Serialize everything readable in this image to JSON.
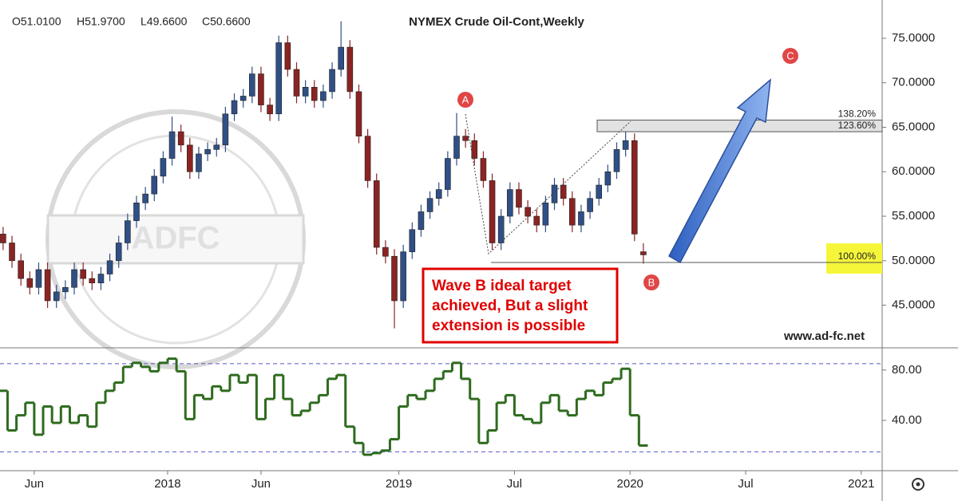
{
  "chart_data": [
    {
      "type": "candlestick",
      "title": "NYMEX Crude Oil-Cont,Weekly",
      "ohlc_legend": [
        "O51.0100",
        "H51.9700",
        "L49.6600",
        "C50.6600"
      ],
      "xlim": [
        -37.7,
        160.7
      ],
      "ylim": [
        40.3,
        79.3
      ],
      "yticks": [
        {
          "value": 45,
          "label": "45.0000"
        },
        {
          "value": 50,
          "label": "50.0000"
        },
        {
          "value": 55,
          "label": "55.0000"
        },
        {
          "value": 60,
          "label": "60.0000"
        },
        {
          "value": 65,
          "label": "65.0000"
        },
        {
          "value": 70,
          "label": "70.0000"
        },
        {
          "value": 75,
          "label": "75.0000"
        }
      ],
      "up_color": "#2f4f86",
      "down_color": "#8b2323",
      "x": [
        -37,
        -35,
        -33,
        -31,
        -29,
        -27,
        -25,
        -23,
        -21,
        -19,
        -17,
        -15,
        -13,
        -11,
        -9,
        -7,
        -5,
        -3,
        -1,
        1,
        3,
        5,
        7,
        9,
        11,
        13,
        15,
        17,
        19,
        21,
        23,
        25,
        27,
        29,
        31,
        33,
        35,
        37,
        39,
        41,
        43,
        45,
        47,
        49,
        51,
        53,
        55,
        57,
        59,
        61,
        63,
        65,
        67,
        69,
        71,
        73,
        75,
        77,
        79,
        81,
        83,
        85,
        87,
        89,
        91,
        93,
        95,
        97,
        99,
        101,
        103,
        105,
        107
      ],
      "open": [
        53,
        52,
        50,
        48,
        47,
        49,
        45.5,
        46.5,
        47,
        49,
        48,
        47.5,
        48.5,
        50,
        52,
        54.5,
        56.5,
        57.5,
        59.5,
        61.5,
        64.5,
        63,
        60,
        62,
        62.5,
        63,
        66.5,
        68,
        68.5,
        71,
        67.5,
        66.5,
        74.5,
        71.5,
        68.5,
        69.5,
        68,
        69,
        71.5,
        74,
        69,
        64,
        59,
        51.5,
        50.5,
        45.5,
        51,
        53.5,
        55.5,
        57,
        58,
        61.5,
        64,
        63.5,
        61.5,
        59,
        52,
        55,
        58,
        56,
        55,
        54,
        56.5,
        58.5,
        57,
        54,
        55.5,
        57,
        58.5,
        60,
        62.5,
        63.5,
        51.01
      ],
      "high": [
        53.8,
        52.8,
        50.8,
        48.8,
        49.8,
        49.8,
        47.3,
        47.8,
        49.8,
        49.8,
        48.8,
        49.3,
        50.8,
        52.8,
        55.3,
        57.3,
        58.3,
        60.3,
        62.3,
        66.2,
        65.3,
        63.8,
        62.8,
        63.3,
        63.8,
        67.3,
        68.8,
        69.3,
        71.8,
        71.8,
        68.3,
        75.3,
        75.3,
        72.3,
        70.3,
        70.3,
        69.8,
        72.3,
        76.9,
        74.8,
        69.8,
        64.8,
        59.8,
        52.3,
        51.3,
        51.8,
        54.3,
        56.3,
        57.8,
        58.8,
        62.3,
        66.6,
        64.8,
        64.3,
        62.3,
        59.8,
        55.8,
        58.8,
        58.8,
        56.8,
        55.8,
        57.3,
        59.3,
        59.3,
        57.8,
        56.3,
        57.8,
        59.3,
        60.8,
        63.3,
        65.6,
        64.3,
        51.97
      ],
      "low": [
        51.2,
        49.2,
        47.2,
        46.2,
        46.2,
        44.7,
        44.7,
        45.7,
        46.2,
        47.2,
        46.7,
        46.7,
        47.7,
        49.2,
        51.2,
        53.7,
        55.7,
        56.7,
        58.7,
        60.7,
        62.2,
        59.2,
        59.2,
        61.2,
        61.7,
        62.2,
        65.7,
        67.2,
        67.7,
        66.7,
        65.7,
        65.7,
        70.7,
        67.7,
        67.7,
        67.2,
        67.2,
        68.2,
        70.7,
        68.2,
        63.2,
        58.2,
        50.7,
        49.7,
        42.4,
        44.7,
        50.2,
        52.7,
        54.7,
        56.2,
        57.2,
        60.7,
        62.7,
        60.7,
        58.2,
        51.2,
        51.2,
        54.2,
        55.2,
        54.2,
        53.2,
        53.2,
        55.7,
        56.2,
        53.2,
        53.2,
        54.7,
        56.2,
        57.7,
        59.2,
        61.7,
        52.2,
        49.66
      ],
      "close": [
        52,
        50,
        48,
        47,
        49,
        45.5,
        46.5,
        47,
        49,
        48,
        47.5,
        48.5,
        50,
        52,
        54.5,
        56.5,
        57.5,
        59.5,
        61.5,
        64.5,
        63,
        60,
        62,
        62.5,
        63,
        66.5,
        68,
        68.5,
        71,
        67.5,
        66.5,
        74.5,
        71.5,
        68.5,
        69.5,
        68,
        69,
        71.5,
        74,
        69,
        64,
        59,
        51.5,
        50.5,
        45.5,
        51,
        53.5,
        55.5,
        57,
        58,
        61.5,
        64,
        63.5,
        61.5,
        59,
        52,
        55,
        58,
        56,
        55,
        54,
        56.5,
        58.5,
        57,
        54,
        55.5,
        57,
        58.5,
        60,
        62.5,
        63.5,
        53,
        50.66
      ],
      "fib_levels": [
        {
          "label": "138.20%",
          "value": 65.8
        },
        {
          "label": "123.60%",
          "value": 64.5
        },
        {
          "label": "100.00%",
          "value": 49.8
        }
      ],
      "wave_labels": [
        "A",
        "B",
        "C"
      ],
      "annotation": [
        "Wave B ideal target",
        "achieved, But a slight",
        "extension is possible"
      ],
      "source": "www.ad-fc.net",
      "watermark": "ADFC"
    },
    {
      "type": "line",
      "color": "#2e6b1e",
      "level_color": "#5555cc",
      "xlim": [
        -37.7,
        160.7
      ],
      "ylim": [
        0,
        97
      ],
      "xticks": [
        {
          "value": -30,
          "label": "Jun"
        },
        {
          "value": 0,
          "label": "2018"
        },
        {
          "value": 21,
          "label": "Jun"
        },
        {
          "value": 52,
          "label": "2019"
        },
        {
          "value": 78,
          "label": "Jul"
        },
        {
          "value": 104,
          "label": "2020"
        },
        {
          "value": 130,
          "label": "Jul"
        },
        {
          "value": 156,
          "label": "2021"
        }
      ],
      "yticks": [
        {
          "value": 40,
          "label": "40.00"
        },
        {
          "value": 80,
          "label": "80.00"
        }
      ],
      "levels": [
        85,
        15
      ],
      "x": [
        -37,
        -35,
        -33,
        -31,
        -29,
        -27,
        -25,
        -23,
        -21,
        -19,
        -17,
        -15,
        -13,
        -11,
        -9,
        -7,
        -5,
        -3,
        -1,
        1,
        3,
        5,
        7,
        9,
        11,
        13,
        15,
        17,
        19,
        21,
        23,
        25,
        27,
        29,
        31,
        33,
        35,
        37,
        39,
        41,
        43,
        45,
        47,
        49,
        51,
        53,
        55,
        57,
        59,
        61,
        63,
        65,
        67,
        69,
        71,
        73,
        75,
        77,
        79,
        81,
        83,
        85,
        87,
        89,
        91,
        93,
        95,
        97,
        99,
        101,
        103,
        105,
        107
      ],
      "values": [
        63.5,
        32,
        44,
        54,
        28.6,
        51,
        38,
        51,
        38,
        44,
        35,
        54,
        63.5,
        70,
        82.5,
        85.7,
        82.5,
        79,
        85.7,
        89,
        79,
        41,
        60,
        57,
        67,
        63.5,
        76,
        70,
        76,
        41,
        57,
        76,
        57,
        44,
        47.6,
        54,
        60,
        73,
        76,
        35,
        22,
        12.7,
        14,
        16,
        25,
        51,
        60,
        57,
        63.5,
        73,
        79,
        85.7,
        73,
        57,
        22,
        32,
        54,
        60,
        44,
        41,
        38,
        54,
        60,
        47.6,
        44,
        57,
        63.5,
        60,
        70,
        73,
        81,
        44,
        20
      ]
    }
  ]
}
